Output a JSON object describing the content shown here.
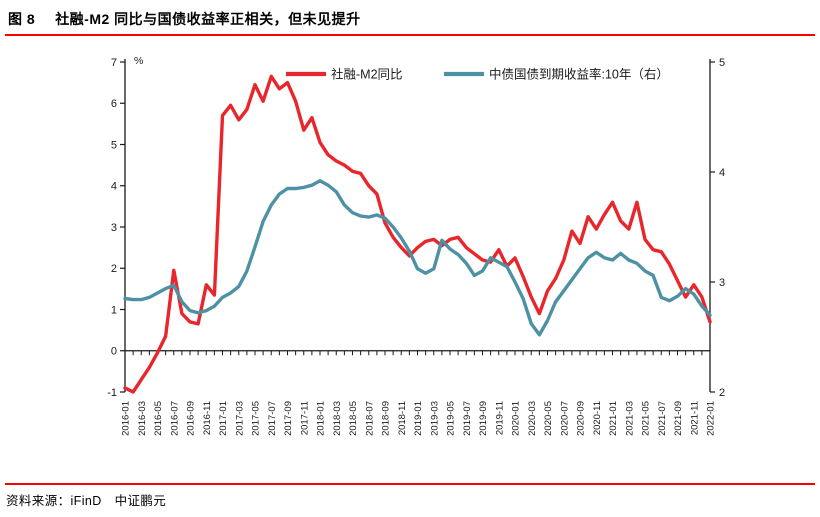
{
  "figure": {
    "label": "图 8",
    "title": "社融-M2 同比与国债收益率正相关，但未见提升"
  },
  "source": {
    "text": "资料来源：iFinD　中证鹏元"
  },
  "colors": {
    "rule_red": "#ff0000",
    "series_red": "#e8262b",
    "series_teal": "#4e91a4",
    "axis": "#1a1a1a"
  },
  "chart_data": {
    "type": "line",
    "x_unit": "month",
    "x_start": "2016-01",
    "x_end": "2022-01",
    "n_points": 73,
    "grid": false,
    "legend_position": "top",
    "x_tick_labels": [
      "2016-01",
      "2016-03",
      "2016-05",
      "2016-07",
      "2016-09",
      "2016-11",
      "2017-01",
      "2017-03",
      "2017-05",
      "2017-07",
      "2017-09",
      "2017-11",
      "2018-01",
      "2018-03",
      "2018-05",
      "2018-07",
      "2018-09",
      "2018-11",
      "2019-01",
      "2019-03",
      "2019-05",
      "2019-07",
      "2019-09",
      "2019-11",
      "2020-01",
      "2020-03",
      "2020-05",
      "2020-07",
      "2020-09",
      "2020-11",
      "2021-01",
      "2021-03",
      "2021-05",
      "2021-07",
      "2021-09",
      "2021-11",
      "2022-01"
    ],
    "left_axis": {
      "label": "%",
      "min": -1,
      "max": 7,
      "ticks": [
        7,
        6,
        5,
        4,
        3,
        2,
        1,
        0,
        -1
      ]
    },
    "right_axis": {
      "min": 2,
      "max": 5,
      "ticks": [
        5,
        4,
        3,
        2
      ]
    },
    "series": [
      {
        "name": "社融-M2同比",
        "axis": "left",
        "color": "#e8262b",
        "values": [
          -0.9,
          -1.0,
          -0.7,
          -0.4,
          -0.05,
          0.35,
          1.95,
          0.9,
          0.7,
          0.65,
          1.6,
          1.35,
          5.7,
          5.95,
          5.6,
          5.85,
          6.45,
          6.05,
          6.65,
          6.35,
          6.5,
          6.05,
          5.35,
          5.65,
          5.05,
          4.75,
          4.6,
          4.5,
          4.35,
          4.3,
          4.0,
          3.8,
          3.1,
          2.75,
          2.5,
          2.3,
          2.5,
          2.65,
          2.7,
          2.55,
          2.7,
          2.75,
          2.5,
          2.35,
          2.2,
          2.15,
          2.45,
          2.05,
          2.25,
          1.8,
          1.3,
          0.9,
          1.45,
          1.75,
          2.2,
          2.9,
          2.6,
          3.25,
          2.95,
          3.3,
          3.6,
          3.15,
          2.95,
          3.6,
          2.7,
          2.45,
          2.4,
          2.1,
          1.7,
          1.3,
          1.6,
          1.3,
          0.7
        ]
      },
      {
        "name": "中债国债到期收益率:10年（右）",
        "axis": "right",
        "color": "#4e91a4",
        "values": [
          2.85,
          2.84,
          2.84,
          2.86,
          2.9,
          2.94,
          2.97,
          2.82,
          2.74,
          2.72,
          2.74,
          2.78,
          2.86,
          2.9,
          2.96,
          3.1,
          3.32,
          3.55,
          3.7,
          3.8,
          3.85,
          3.85,
          3.86,
          3.88,
          3.92,
          3.88,
          3.82,
          3.7,
          3.63,
          3.6,
          3.59,
          3.61,
          3.58,
          3.5,
          3.4,
          3.28,
          3.12,
          3.08,
          3.12,
          3.38,
          3.3,
          3.25,
          3.17,
          3.06,
          3.1,
          3.22,
          3.18,
          3.14,
          3.0,
          2.85,
          2.62,
          2.52,
          2.65,
          2.82,
          2.92,
          3.02,
          3.12,
          3.22,
          3.27,
          3.22,
          3.2,
          3.26,
          3.2,
          3.17,
          3.1,
          3.06,
          2.86,
          2.83,
          2.87,
          2.94,
          2.89,
          2.78,
          2.7
        ]
      }
    ]
  }
}
